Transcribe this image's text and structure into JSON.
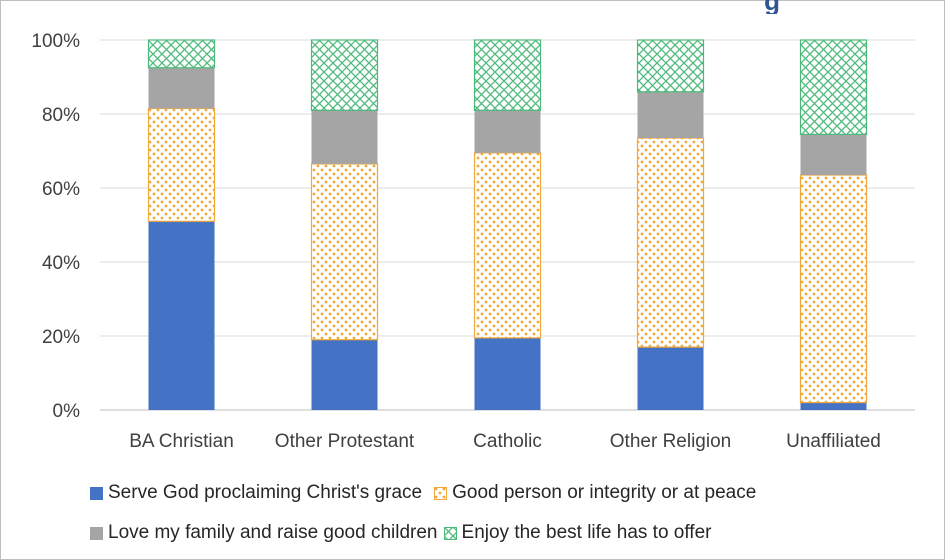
{
  "chart_data": {
    "type": "bar",
    "stacked": true,
    "title_fragment": "g",
    "categories": [
      "BA Christian",
      "Other Protestant",
      "Catholic",
      "Other Religion",
      "Unaffiliated"
    ],
    "series": [
      {
        "name": "Serve God proclaiming Christ's grace",
        "color": "#4472c4",
        "pattern": "solid",
        "values": [
          51,
          19,
          19.5,
          17,
          2
        ]
      },
      {
        "name": "Good person or integrity or at peace",
        "color": "#f2a93b",
        "pattern": "dots",
        "values": [
          30.5,
          47.5,
          50,
          56.5,
          61.5
        ]
      },
      {
        "name": "Love my family and raise good children",
        "color": "#a5a5a5",
        "pattern": "solid",
        "values": [
          11,
          14.5,
          11.5,
          12.5,
          11
        ]
      },
      {
        "name": "Enjoy the best life has to offer",
        "color": "#4cb97a",
        "pattern": "crosshatch",
        "values": [
          7.5,
          19,
          19,
          14,
          25.5
        ]
      }
    ],
    "ylim": [
      0,
      100
    ],
    "yticks": [
      "0%",
      "20%",
      "40%",
      "60%",
      "80%",
      "100%"
    ],
    "grid": true,
    "legend_position": "bottom"
  }
}
